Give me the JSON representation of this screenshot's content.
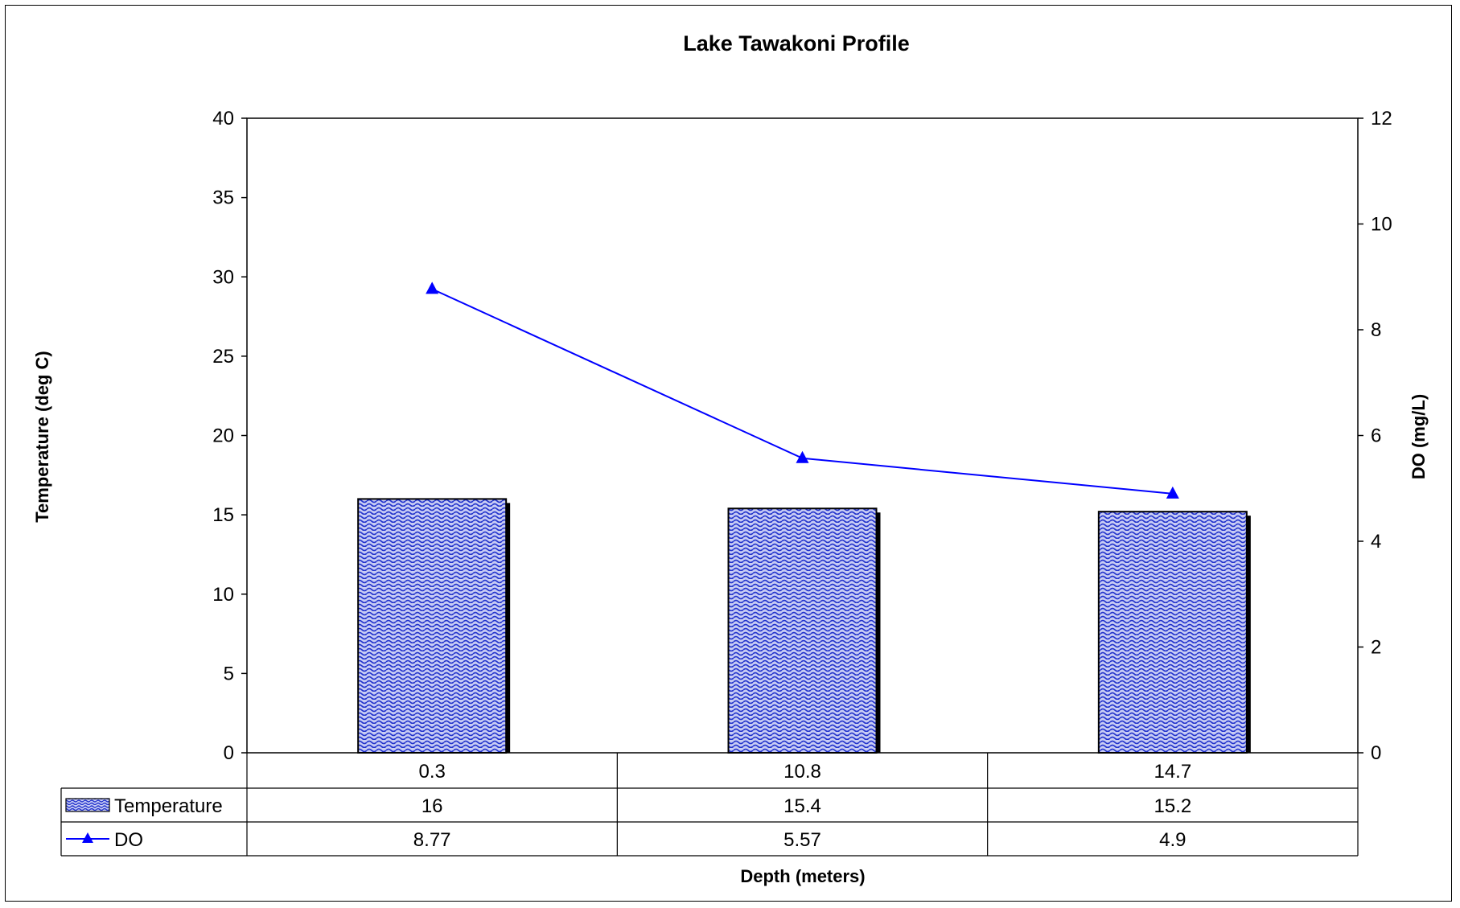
{
  "chart_data": {
    "type": "bar",
    "title": "Lake Tawakoni Profile",
    "xlabel": "Depth (meters)",
    "ylabel": "Temperature (deg C)",
    "y2label": "DO (mg/L)",
    "categories": [
      "0.3",
      "10.8",
      "14.7"
    ],
    "ylim": [
      0,
      40
    ],
    "y2lim": [
      0,
      12
    ],
    "yticks": [
      "0",
      "5",
      "10",
      "15",
      "20",
      "25",
      "30",
      "35",
      "40"
    ],
    "y2ticks": [
      "0",
      "2",
      "4",
      "6",
      "8",
      "10",
      "12"
    ],
    "series": [
      {
        "name": "Temperature",
        "type": "bar",
        "axis": "left",
        "values": [
          16,
          15.4,
          15.2
        ],
        "labels": [
          "16",
          "15.4",
          "15.2"
        ]
      },
      {
        "name": "DO",
        "type": "line",
        "axis": "right",
        "values": [
          8.77,
          5.57,
          4.9
        ],
        "labels": [
          "8.77",
          "5.57",
          "4.9"
        ]
      }
    ],
    "grid": false,
    "legend": "data-table",
    "colors": {
      "bar_fill": "#c8ccf4",
      "bar_pattern": "#2233cc",
      "bar_border": "#000000",
      "line": "#0000ff",
      "marker": "#0000ff"
    }
  }
}
